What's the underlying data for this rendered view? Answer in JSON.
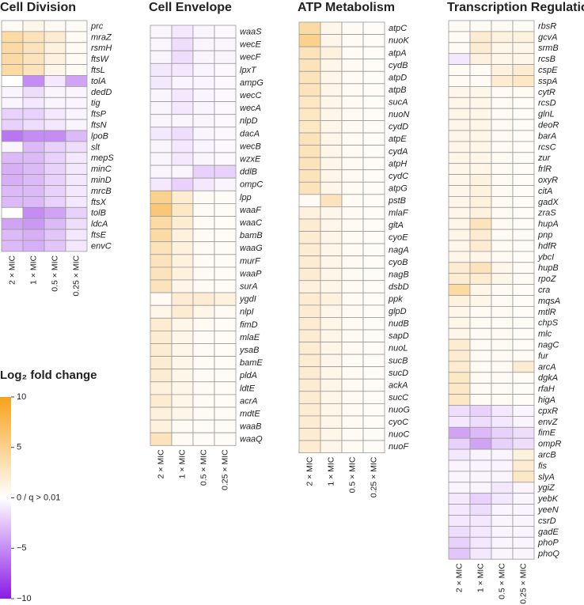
{
  "chart_data": [
    {
      "type": "heatmap",
      "title": "Cell Division",
      "columns": [
        "2 × MIC",
        "1 × MIC",
        "0.5 × MIC",
        "0.25 × MIC"
      ],
      "rows": [
        "prc",
        "mraZ",
        "rsmH",
        "ftsW",
        "ftsL",
        "tolA",
        "dedD",
        "tig",
        "ftsP",
        "ftsN",
        "lpoB",
        "slt",
        "mepS",
        "minC",
        "minD",
        "mrcB",
        "ftsX",
        "tolB",
        "ldcA",
        "ftsE",
        "envC"
      ],
      "values": [
        [
          0.5,
          1,
          0.5,
          0.3
        ],
        [
          4,
          3,
          2,
          0.5
        ],
        [
          4,
          3,
          1.5,
          0.5
        ],
        [
          4,
          3,
          1.5,
          0.5
        ],
        [
          4,
          3,
          1,
          0.5
        ],
        [
          0,
          -5,
          -1,
          -4
        ],
        [
          -0.5,
          -1.5,
          -0.5,
          -0.5
        ],
        [
          -0.5,
          -1,
          -0.5,
          -0.5
        ],
        [
          -2,
          -2,
          -1,
          -0.5
        ],
        [
          -2,
          -1.5,
          -1,
          -0.5
        ],
        [
          -6,
          -5,
          -5,
          -3
        ],
        [
          -0.5,
          -3,
          -2,
          -1.5
        ],
        [
          -3,
          -3,
          -2,
          -1
        ],
        [
          -3.5,
          -3,
          -2,
          -1
        ],
        [
          -3.5,
          -3,
          -2,
          -1
        ],
        [
          -3,
          -3,
          -2,
          -1
        ],
        [
          -3,
          -3,
          -2,
          -1
        ],
        [
          0,
          -5,
          -4,
          -2
        ],
        [
          -4,
          -4.5,
          -3,
          -1.5
        ],
        [
          -3,
          -3.5,
          -2.5,
          -1
        ],
        [
          -3,
          -3.5,
          -2.5,
          -1
        ]
      ]
    },
    {
      "type": "heatmap",
      "title": "Cell Envelope",
      "columns": [
        "2 × MIC",
        "1 × MIC",
        "0.5 × MIC",
        "0.25 × MIC"
      ],
      "rows": [
        "waaS",
        "wecE",
        "wecF",
        "lpxT",
        "ampG",
        "wecC",
        "wecA",
        "nlpD",
        "dacA",
        "wecB",
        "wzxE",
        "ddlB",
        "ompC",
        "lpp",
        "waaF",
        "waaC",
        "bamB",
        "waaG",
        "murF",
        "waaP",
        "surA",
        "ygdI",
        "nlpI",
        "fimD",
        "mlaE",
        "ysaB",
        "bamE",
        "pldA",
        "ldtE",
        "acrA",
        "mdtE",
        "waaB",
        "waaQ"
      ],
      "values": [
        [
          -0.5,
          -1,
          -0.5,
          -0.3
        ],
        [
          -0.5,
          -1.5,
          -0.5,
          -0.5
        ],
        [
          -0.5,
          -1.5,
          -0.5,
          -0.5
        ],
        [
          -1,
          -1,
          -0.5,
          -0.3
        ],
        [
          -1,
          -0.5,
          -0.5,
          -0.3
        ],
        [
          -0.5,
          -1,
          -0.5,
          -0.3
        ],
        [
          -0.5,
          -1,
          -0.5,
          -0.3
        ],
        [
          -0.5,
          -0.5,
          -0.5,
          -0.3
        ],
        [
          -1,
          -1.5,
          -0.5,
          -0.3
        ],
        [
          -0.5,
          -1,
          -0.5,
          -0.3
        ],
        [
          -0.5,
          -1,
          -0.5,
          -0.3
        ],
        [
          -0.5,
          -0.5,
          -2,
          -2
        ],
        [
          -1,
          -2,
          -1,
          -0.5
        ],
        [
          5,
          2,
          0.5,
          0.3
        ],
        [
          6,
          2.5,
          0.5,
          0.3
        ],
        [
          4,
          2,
          0.5,
          0.3
        ],
        [
          4,
          1.5,
          0.5,
          0.3
        ],
        [
          3,
          1.5,
          0.5,
          0.3
        ],
        [
          3,
          1.5,
          0.5,
          0.3
        ],
        [
          3,
          1.5,
          0.5,
          0.3
        ],
        [
          3,
          1,
          0.5,
          0.3
        ],
        [
          0.5,
          2,
          2,
          1.5
        ],
        [
          1,
          2,
          1,
          0.5
        ],
        [
          2,
          1,
          0.5,
          0.3
        ],
        [
          2,
          1,
          0.5,
          0.3
        ],
        [
          2,
          1,
          0.5,
          0.3
        ],
        [
          2,
          1,
          0.5,
          0.3
        ],
        [
          2,
          1,
          0.5,
          0.3
        ],
        [
          1.5,
          1,
          0.5,
          0.3
        ],
        [
          2,
          1,
          0.5,
          0.3
        ],
        [
          1.5,
          1,
          0.5,
          0.3
        ],
        [
          1.5,
          0.5,
          0.3,
          0.3
        ],
        [
          3,
          0.5,
          0.3,
          0.3
        ]
      ]
    },
    {
      "type": "heatmap",
      "title": "ATP Metabolism",
      "columns": [
        "2 × MIC",
        "1 × MIC",
        "0.5 × MIC",
        "0.25 × MIC"
      ],
      "rows": [
        "atpC",
        "nuoK",
        "atpA",
        "cydB",
        "atpD",
        "atpB",
        "sucA",
        "nuoN",
        "cydD",
        "atpE",
        "cydA",
        "atpH",
        "cydC",
        "atpG",
        "pstB",
        "mlaF",
        "gltA",
        "cyoE",
        "nagA",
        "cyoB",
        "nagB",
        "dsbD",
        "ppk",
        "glpD",
        "nudB",
        "sapD",
        "nuoL",
        "sucB",
        "sucD",
        "ackA",
        "sucC",
        "nuoG",
        "cyoC",
        "nuoC",
        "nuoF"
      ],
      "values": [
        [
          4,
          1,
          0.5,
          0.3
        ],
        [
          5,
          1,
          0.5,
          0.3
        ],
        [
          3,
          1.5,
          0.5,
          0.3
        ],
        [
          3,
          1,
          0.5,
          0.3
        ],
        [
          3,
          1,
          0.5,
          0.3
        ],
        [
          3,
          1,
          0.5,
          0.3
        ],
        [
          2.5,
          1,
          0.5,
          0.3
        ],
        [
          2.5,
          1,
          0.5,
          0.3
        ],
        [
          2.5,
          1,
          0.5,
          0.3
        ],
        [
          3,
          1,
          0.5,
          0.3
        ],
        [
          3,
          1,
          0.5,
          0.3
        ],
        [
          3,
          1,
          0.5,
          0.3
        ],
        [
          3,
          1,
          0.5,
          0.3
        ],
        [
          3,
          1,
          0.5,
          0.3
        ],
        [
          0.5,
          3,
          0.5,
          0.3
        ],
        [
          1.5,
          1,
          0.5,
          0.3
        ],
        [
          2,
          1,
          0.5,
          0.3
        ],
        [
          2,
          1,
          0.5,
          0.3
        ],
        [
          2,
          1,
          0.5,
          0.3
        ],
        [
          2,
          1,
          0.5,
          0.3
        ],
        [
          2,
          1,
          0.5,
          0.3
        ],
        [
          1.5,
          1,
          0.5,
          0.3
        ],
        [
          2,
          1.5,
          0.5,
          0.3
        ],
        [
          2,
          1,
          0.5,
          0.3
        ],
        [
          2,
          1,
          0.5,
          0.3
        ],
        [
          2,
          1,
          0.5,
          0.3
        ],
        [
          2,
          1,
          0.5,
          0.3
        ],
        [
          2,
          1,
          0.5,
          0.3
        ],
        [
          2,
          1,
          0.5,
          0.3
        ],
        [
          2,
          1,
          0.5,
          0.3
        ],
        [
          2,
          1,
          0.5,
          0.3
        ],
        [
          2,
          1,
          0.5,
          0.3
        ],
        [
          2,
          1,
          0.5,
          0.3
        ],
        [
          2,
          1,
          0.5,
          0.3
        ],
        [
          2,
          1,
          0.5,
          0.3
        ]
      ]
    },
    {
      "type": "heatmap",
      "title": "Transcription Regulation",
      "columns": [
        "2 × MIC",
        "1 × MIC",
        "0.5 × MIC",
        "0.25 × MIC"
      ],
      "rows": [
        "rbsR",
        "gcvA",
        "srmB",
        "rcsB",
        "cspE",
        "sspA",
        "cytR",
        "rcsD",
        "glnL",
        "deoR",
        "barA",
        "rcsC",
        "zur",
        "frlR",
        "oxyR",
        "citA",
        "gadX",
        "zraS",
        "hupA",
        "pnp",
        "hdfR",
        "ybcI",
        "hupB",
        "rpoZ",
        "cra",
        "mqsA",
        "mtlR",
        "chpS",
        "mlc",
        "nagC",
        "fur",
        "arcA",
        "dgkA",
        "rfaH",
        "higA",
        "cpxR",
        "envZ",
        "fimE",
        "ompR",
        "arcB",
        "fis",
        "slyA",
        "ygiZ",
        "yebK",
        "yeeN",
        "csrD",
        "gadE",
        "phoP",
        "phoQ"
      ],
      "values": [
        [
          0.5,
          0.5,
          0.5,
          0.3
        ],
        [
          0.5,
          2,
          1.5,
          1.5
        ],
        [
          0.5,
          2,
          1,
          1
        ],
        [
          -1,
          1.5,
          1,
          1
        ],
        [
          0.5,
          0.5,
          1.5,
          2
        ],
        [
          0.5,
          0.5,
          2,
          2.5
        ],
        [
          1,
          1,
          0.5,
          0.5
        ],
        [
          1,
          1,
          0.5,
          0.3
        ],
        [
          1,
          1,
          0.5,
          0.3
        ],
        [
          1,
          1,
          0.5,
          0.3
        ],
        [
          1,
          1,
          0.5,
          0.3
        ],
        [
          1,
          1,
          0.5,
          0.3
        ],
        [
          1,
          1,
          0.5,
          0.3
        ],
        [
          1,
          1,
          0.5,
          0.3
        ],
        [
          1,
          1.5,
          0.5,
          0.3
        ],
        [
          1,
          1.5,
          0.5,
          0.3
        ],
        [
          1,
          1.5,
          0.5,
          0.3
        ],
        [
          1,
          1.5,
          0.5,
          0.3
        ],
        [
          1,
          3,
          0.5,
          0.3
        ],
        [
          1,
          2,
          0.5,
          0.3
        ],
        [
          1,
          2,
          0.5,
          0.3
        ],
        [
          1,
          1,
          0.5,
          0.3
        ],
        [
          2,
          3,
          1,
          0.5
        ],
        [
          2,
          2,
          1,
          0.5
        ],
        [
          4,
          1,
          0.5,
          0.3
        ],
        [
          1.5,
          1,
          0.5,
          0.3
        ],
        [
          1,
          0.5,
          0.5,
          0.3
        ],
        [
          1,
          0.5,
          0.5,
          0.3
        ],
        [
          1,
          0.5,
          0.5,
          0.3
        ],
        [
          2,
          0.5,
          0.5,
          0.3
        ],
        [
          2,
          0.5,
          0.5,
          0.3
        ],
        [
          2,
          0.5,
          0.5,
          2
        ],
        [
          2.5,
          0.5,
          0.5,
          0.3
        ],
        [
          2.5,
          0.5,
          0.5,
          0.3
        ],
        [
          2.5,
          0.5,
          0.5,
          0.3
        ],
        [
          -1.5,
          -2,
          -1,
          -0.5
        ],
        [
          -1,
          -1.5,
          -1,
          -0.5
        ],
        [
          -4,
          -3,
          -2,
          -1.5
        ],
        [
          -2,
          -4,
          -2,
          -1.5
        ],
        [
          -1,
          -0.5,
          -0.5,
          1.5
        ],
        [
          -0.5,
          -0.5,
          -0.5,
          2
        ],
        [
          -0.5,
          -0.5,
          -0.5,
          2.5
        ],
        [
          -0.5,
          -0.5,
          -1,
          -0.5
        ],
        [
          -1,
          -2,
          -1,
          -0.5
        ],
        [
          -1,
          -1.5,
          -0.5,
          -0.5
        ],
        [
          -1,
          -1,
          -0.5,
          -0.5
        ],
        [
          -1.5,
          -1,
          -0.5,
          -0.5
        ],
        [
          -2,
          -1,
          -0.5,
          -0.5
        ],
        [
          -2.5,
          -1,
          -0.5,
          -0.5
        ]
      ]
    }
  ],
  "colorbar": {
    "title": "Log₂ fold change",
    "lim": [
      -10,
      10
    ],
    "ticks": [
      {
        "value": -10,
        "label": "−10"
      },
      {
        "value": -5,
        "label": "−5"
      },
      {
        "value": 0,
        "label": "0 / q > 0.01"
      },
      5,
      10
    ],
    "colors": [
      "#8b1ae6",
      "#ffffff",
      "#f7a21b"
    ]
  }
}
